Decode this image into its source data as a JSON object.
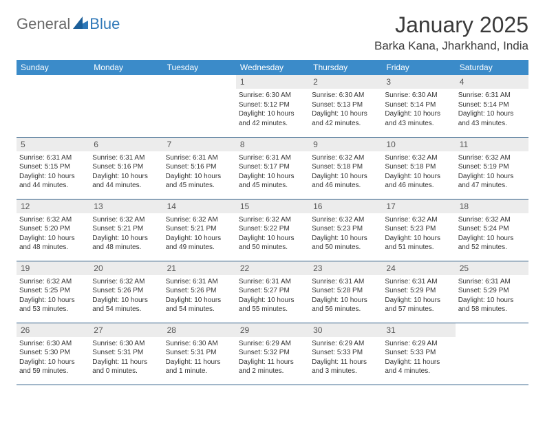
{
  "logo": {
    "text1": "General",
    "text2": "Blue"
  },
  "title": "January 2025",
  "location": "Barka Kana, Jharkhand, India",
  "colors": {
    "header_bg": "#3b8bc9",
    "header_text": "#ffffff",
    "daynum_bg": "#ececec",
    "daynum_text": "#555555",
    "body_text": "#333333",
    "rule": "#2a5a84",
    "logo_gray": "#6a6a6a",
    "logo_blue": "#2f78b8",
    "background": "#ffffff"
  },
  "weekdays": [
    "Sunday",
    "Monday",
    "Tuesday",
    "Wednesday",
    "Thursday",
    "Friday",
    "Saturday"
  ],
  "weeks": [
    [
      null,
      null,
      null,
      {
        "d": "1",
        "sr": "6:30 AM",
        "ss": "5:12 PM",
        "dl": "10 hours and 42 minutes."
      },
      {
        "d": "2",
        "sr": "6:30 AM",
        "ss": "5:13 PM",
        "dl": "10 hours and 42 minutes."
      },
      {
        "d": "3",
        "sr": "6:30 AM",
        "ss": "5:14 PM",
        "dl": "10 hours and 43 minutes."
      },
      {
        "d": "4",
        "sr": "6:31 AM",
        "ss": "5:14 PM",
        "dl": "10 hours and 43 minutes."
      }
    ],
    [
      {
        "d": "5",
        "sr": "6:31 AM",
        "ss": "5:15 PM",
        "dl": "10 hours and 44 minutes."
      },
      {
        "d": "6",
        "sr": "6:31 AM",
        "ss": "5:16 PM",
        "dl": "10 hours and 44 minutes."
      },
      {
        "d": "7",
        "sr": "6:31 AM",
        "ss": "5:16 PM",
        "dl": "10 hours and 45 minutes."
      },
      {
        "d": "8",
        "sr": "6:31 AM",
        "ss": "5:17 PM",
        "dl": "10 hours and 45 minutes."
      },
      {
        "d": "9",
        "sr": "6:32 AM",
        "ss": "5:18 PM",
        "dl": "10 hours and 46 minutes."
      },
      {
        "d": "10",
        "sr": "6:32 AM",
        "ss": "5:18 PM",
        "dl": "10 hours and 46 minutes."
      },
      {
        "d": "11",
        "sr": "6:32 AM",
        "ss": "5:19 PM",
        "dl": "10 hours and 47 minutes."
      }
    ],
    [
      {
        "d": "12",
        "sr": "6:32 AM",
        "ss": "5:20 PM",
        "dl": "10 hours and 48 minutes."
      },
      {
        "d": "13",
        "sr": "6:32 AM",
        "ss": "5:21 PM",
        "dl": "10 hours and 48 minutes."
      },
      {
        "d": "14",
        "sr": "6:32 AM",
        "ss": "5:21 PM",
        "dl": "10 hours and 49 minutes."
      },
      {
        "d": "15",
        "sr": "6:32 AM",
        "ss": "5:22 PM",
        "dl": "10 hours and 50 minutes."
      },
      {
        "d": "16",
        "sr": "6:32 AM",
        "ss": "5:23 PM",
        "dl": "10 hours and 50 minutes."
      },
      {
        "d": "17",
        "sr": "6:32 AM",
        "ss": "5:23 PM",
        "dl": "10 hours and 51 minutes."
      },
      {
        "d": "18",
        "sr": "6:32 AM",
        "ss": "5:24 PM",
        "dl": "10 hours and 52 minutes."
      }
    ],
    [
      {
        "d": "19",
        "sr": "6:32 AM",
        "ss": "5:25 PM",
        "dl": "10 hours and 53 minutes."
      },
      {
        "d": "20",
        "sr": "6:32 AM",
        "ss": "5:26 PM",
        "dl": "10 hours and 54 minutes."
      },
      {
        "d": "21",
        "sr": "6:31 AM",
        "ss": "5:26 PM",
        "dl": "10 hours and 54 minutes."
      },
      {
        "d": "22",
        "sr": "6:31 AM",
        "ss": "5:27 PM",
        "dl": "10 hours and 55 minutes."
      },
      {
        "d": "23",
        "sr": "6:31 AM",
        "ss": "5:28 PM",
        "dl": "10 hours and 56 minutes."
      },
      {
        "d": "24",
        "sr": "6:31 AM",
        "ss": "5:29 PM",
        "dl": "10 hours and 57 minutes."
      },
      {
        "d": "25",
        "sr": "6:31 AM",
        "ss": "5:29 PM",
        "dl": "10 hours and 58 minutes."
      }
    ],
    [
      {
        "d": "26",
        "sr": "6:30 AM",
        "ss": "5:30 PM",
        "dl": "10 hours and 59 minutes."
      },
      {
        "d": "27",
        "sr": "6:30 AM",
        "ss": "5:31 PM",
        "dl": "11 hours and 0 minutes."
      },
      {
        "d": "28",
        "sr": "6:30 AM",
        "ss": "5:31 PM",
        "dl": "11 hours and 1 minute."
      },
      {
        "d": "29",
        "sr": "6:29 AM",
        "ss": "5:32 PM",
        "dl": "11 hours and 2 minutes."
      },
      {
        "d": "30",
        "sr": "6:29 AM",
        "ss": "5:33 PM",
        "dl": "11 hours and 3 minutes."
      },
      {
        "d": "31",
        "sr": "6:29 AM",
        "ss": "5:33 PM",
        "dl": "11 hours and 4 minutes."
      },
      null
    ]
  ]
}
